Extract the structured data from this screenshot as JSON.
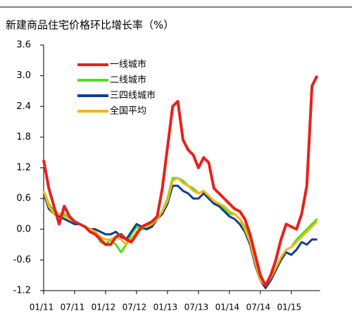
{
  "chart_data": {
    "type": "line",
    "title": "新建商品住宅价格环比增长率（%）",
    "categories": [
      "01/11",
      null,
      null,
      null,
      null,
      null,
      "07/11",
      null,
      null,
      null,
      null,
      null,
      "01/12",
      null,
      null,
      null,
      null,
      null,
      "07/12",
      null,
      null,
      null,
      null,
      null,
      "01/13",
      null,
      null,
      null,
      null,
      null,
      "07/13",
      null,
      null,
      null,
      null,
      null,
      "01/14",
      null,
      null,
      null,
      null,
      null,
      "07/14",
      null,
      null,
      null,
      null,
      null,
      "01/15",
      null,
      null,
      null,
      null,
      null
    ],
    "series": [
      {
        "name": "一线城市",
        "color": "#e8211c",
        "values": [
          1.35,
          0.8,
          0.45,
          0.1,
          0.45,
          0.25,
          0.15,
          0.1,
          0.05,
          -0.05,
          -0.1,
          -0.2,
          -0.3,
          -0.3,
          -0.15,
          -0.1,
          -0.2,
          -0.25,
          -0.1,
          0.05,
          0.1,
          0.15,
          0.25,
          0.8,
          1.6,
          2.4,
          2.5,
          1.75,
          1.55,
          1.45,
          1.2,
          1.4,
          1.3,
          0.8,
          0.7,
          0.6,
          0.5,
          0.4,
          0.35,
          0.2,
          -0.1,
          -0.5,
          -0.9,
          -1.1,
          -0.9,
          -0.6,
          -0.2,
          0.1,
          0.05,
          0.0,
          0.3,
          0.85,
          2.8,
          3.0
        ]
      },
      {
        "name": "二线城市",
        "color": "#4fe01e",
        "values": [
          0.75,
          0.5,
          0.35,
          0.3,
          0.3,
          0.2,
          0.15,
          0.1,
          0.05,
          0.0,
          -0.05,
          -0.25,
          -0.3,
          -0.2,
          -0.3,
          -0.45,
          -0.3,
          -0.1,
          0.05,
          0.0,
          0.0,
          0.1,
          0.2,
          0.35,
          0.6,
          1.0,
          1.0,
          0.95,
          0.85,
          0.8,
          0.7,
          0.75,
          0.65,
          0.55,
          0.5,
          0.4,
          0.3,
          0.3,
          0.2,
          0.05,
          -0.2,
          -0.6,
          -1.0,
          -1.1,
          -0.95,
          -0.75,
          -0.55,
          -0.4,
          -0.35,
          -0.2,
          -0.1,
          0.0,
          0.1,
          0.2
        ]
      },
      {
        "name": "三四线城市",
        "color": "#123d8f",
        "values": [
          0.7,
          0.4,
          0.3,
          0.25,
          0.2,
          0.15,
          0.1,
          0.1,
          0.05,
          0.0,
          0.0,
          -0.05,
          -0.1,
          -0.1,
          -0.05,
          -0.15,
          -0.2,
          -0.05,
          0.1,
          0.05,
          0.0,
          0.05,
          0.2,
          0.3,
          0.5,
          0.85,
          0.85,
          0.75,
          0.7,
          0.6,
          0.6,
          0.7,
          0.6,
          0.5,
          0.45,
          0.35,
          0.25,
          0.2,
          0.1,
          -0.05,
          -0.3,
          -0.7,
          -1.0,
          -1.15,
          -1.0,
          -0.8,
          -0.6,
          -0.45,
          -0.5,
          -0.4,
          -0.25,
          -0.3,
          -0.2,
          -0.2
        ]
      },
      {
        "name": "全国平均",
        "color": "#f5b614",
        "values": [
          0.75,
          0.45,
          0.3,
          0.3,
          0.25,
          0.2,
          0.15,
          0.1,
          0.05,
          0.0,
          -0.05,
          -0.15,
          -0.2,
          -0.2,
          -0.15,
          -0.2,
          -0.3,
          -0.2,
          -0.05,
          0.05,
          0.05,
          0.1,
          0.2,
          0.35,
          0.55,
          0.95,
          1.0,
          0.9,
          0.85,
          0.75,
          0.7,
          0.75,
          0.65,
          0.55,
          0.5,
          0.45,
          0.35,
          0.3,
          0.2,
          0.0,
          -0.25,
          -0.65,
          -1.0,
          -1.1,
          -0.95,
          -0.75,
          -0.55,
          -0.4,
          -0.35,
          -0.25,
          -0.15,
          -0.05,
          0.05,
          0.15
        ]
      }
    ],
    "ylim": [
      -1.2,
      3.6
    ],
    "yticks": [
      3.6,
      {
        "value": 3,
        "label": "3.0"
      },
      2.4,
      1.8,
      1.2,
      0.6,
      {
        "value": 0,
        "label": "0.0"
      },
      -0.6,
      -1.2
    ],
    "legend": "upper left"
  }
}
